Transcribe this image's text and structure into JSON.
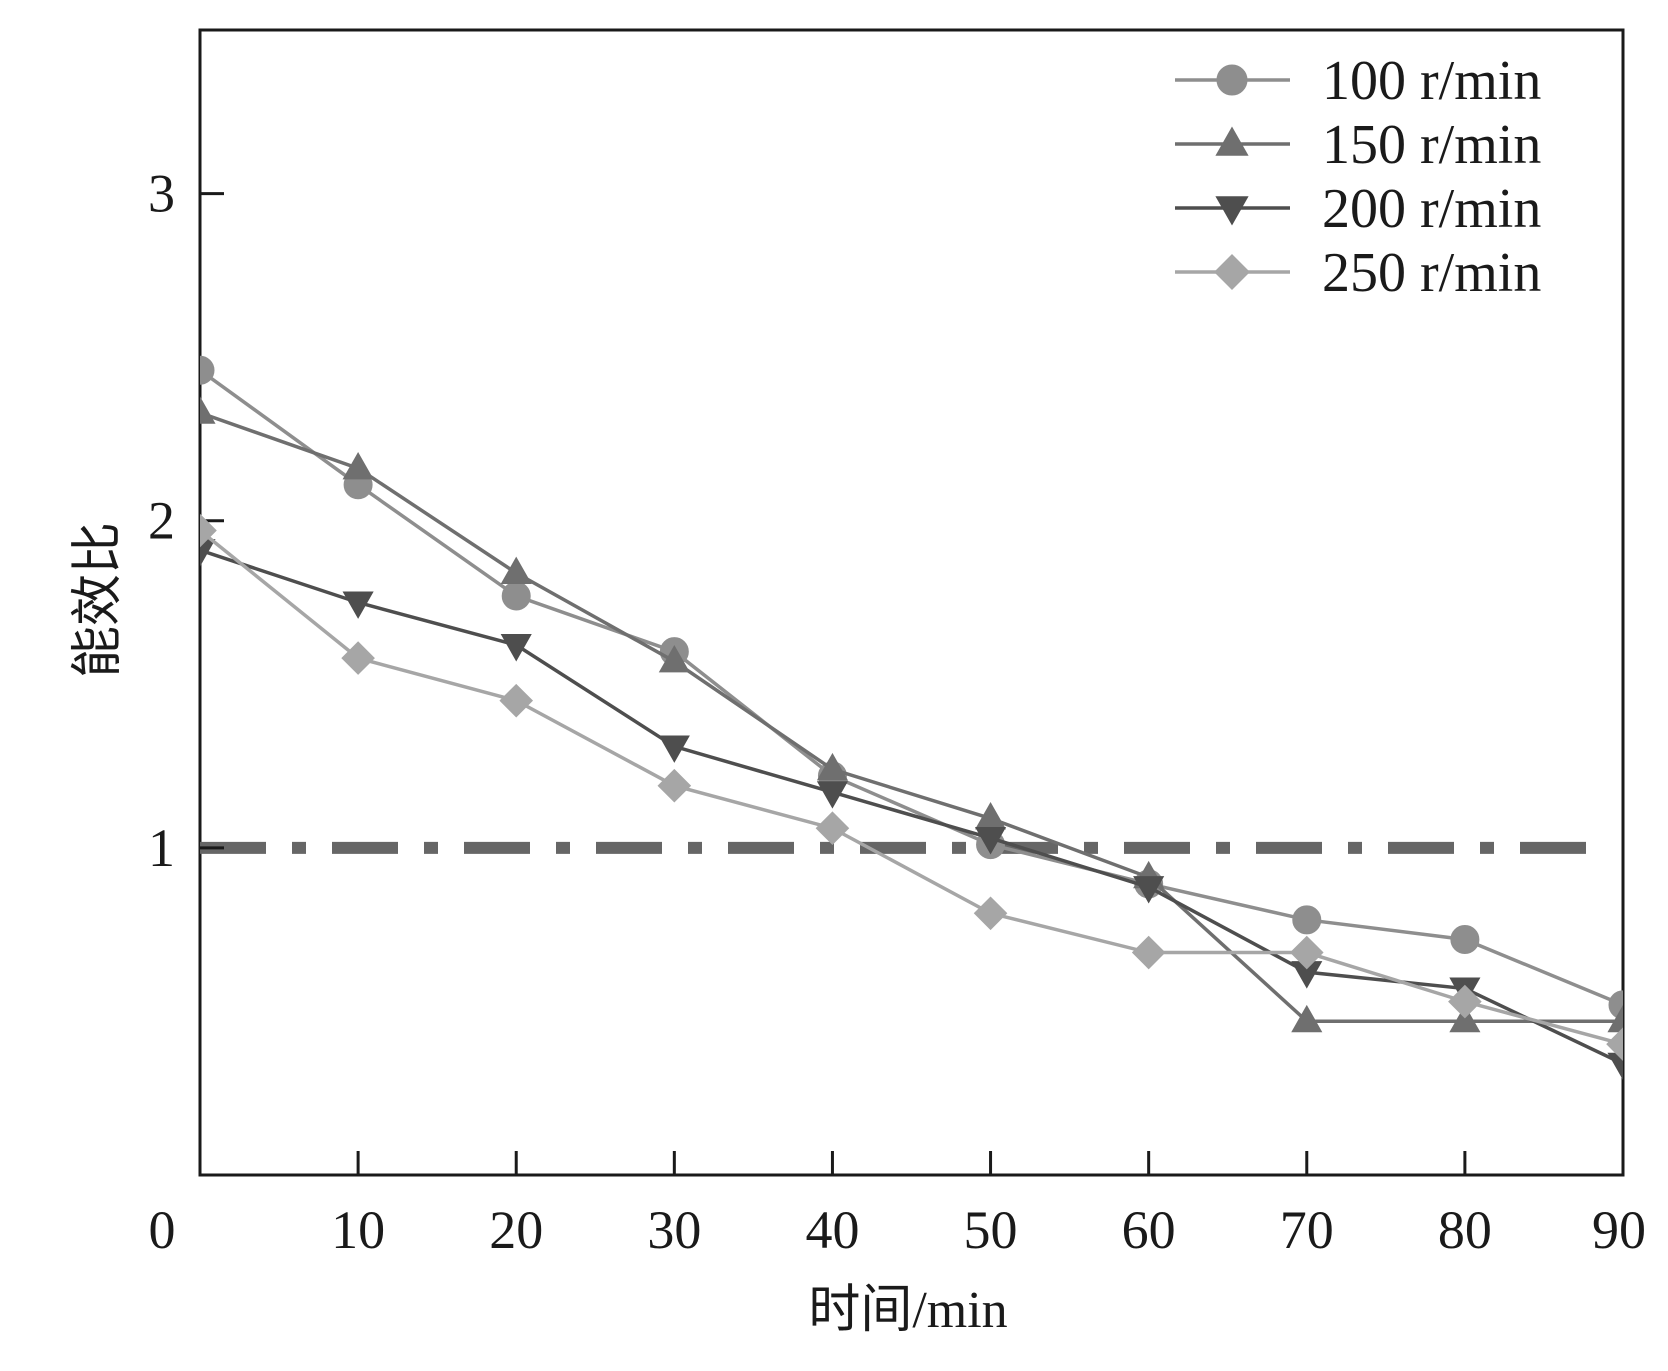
{
  "chart_data": {
    "type": "line",
    "title": "",
    "xlabel": "时间/min",
    "ylabel": "能效比",
    "xlim": [
      0,
      90
    ],
    "ylim": [
      0,
      3.5
    ],
    "x_ticks": [
      0,
      10,
      20,
      30,
      40,
      50,
      60,
      70,
      80,
      90
    ],
    "y_ticks": [
      1,
      2,
      3
    ],
    "x_tick_labels": [
      "0",
      "10",
      "20",
      "30",
      "40",
      "50",
      "60",
      "70",
      "80",
      "90"
    ],
    "y_tick_labels": [
      "1",
      "2",
      "3"
    ],
    "x": [
      0,
      10,
      20,
      30,
      40,
      50,
      60,
      70,
      80,
      90
    ],
    "reference_line": {
      "y": 1,
      "style": "dash-dot",
      "color": "#666666"
    },
    "legend_position": "top-right",
    "series": [
      {
        "name": "100 r/min",
        "marker": "circle",
        "color": "#8e8e8e",
        "values": [
          2.46,
          2.11,
          1.77,
          1.6,
          1.22,
          1.01,
          0.89,
          0.78,
          0.72,
          0.52
        ]
      },
      {
        "name": "150 r/min",
        "marker": "triangle-up",
        "color": "#6f6f6f",
        "values": [
          2.33,
          2.16,
          1.84,
          1.57,
          1.24,
          1.09,
          0.91,
          0.47,
          0.47,
          0.47
        ]
      },
      {
        "name": "200 r/min",
        "marker": "triangle-down",
        "color": "#4e4e4e",
        "values": [
          1.91,
          1.75,
          1.62,
          1.31,
          1.17,
          1.03,
          0.88,
          0.62,
          0.57,
          0.34
        ]
      },
      {
        "name": "250 r/min",
        "marker": "diamond",
        "color": "#a6a6a6",
        "values": [
          1.97,
          1.58,
          1.45,
          1.19,
          1.06,
          0.8,
          0.68,
          0.68,
          0.53,
          0.4
        ]
      }
    ]
  }
}
